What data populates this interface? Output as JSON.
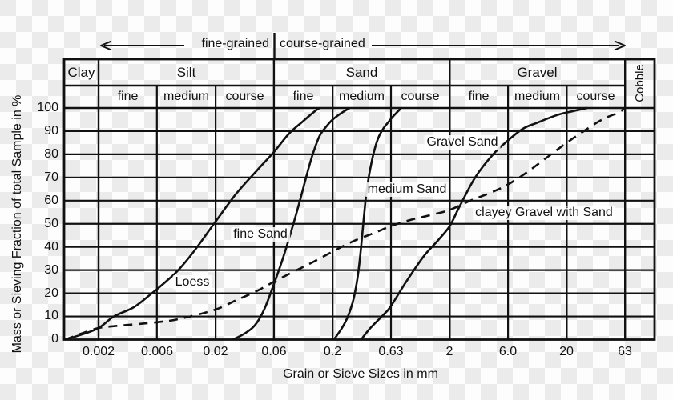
{
  "annotations": {
    "fine_grained": "fine-grained",
    "course_grained": "course-grained"
  },
  "header": {
    "row1": [
      "Clay",
      "Silt",
      "Sand",
      "Gravel"
    ],
    "cobble": "Cobble",
    "row2": [
      "fine",
      "medium",
      "course",
      "fine",
      "medium",
      "course",
      "fine",
      "medium",
      "course"
    ]
  },
  "axes": {
    "x": {
      "title": "Grain or Sieve Sizes in mm",
      "ticks": [
        {
          "label": "0.002",
          "mm": 0.002
        },
        {
          "label": "0.006",
          "mm": 0.0063
        },
        {
          "label": "0.02",
          "mm": 0.02
        },
        {
          "label": "0.06",
          "mm": 0.063
        },
        {
          "label": "0.2",
          "mm": 0.2
        },
        {
          "label": "0.63",
          "mm": 0.63
        },
        {
          "label": "2",
          "mm": 2
        },
        {
          "label": "6.0",
          "mm": 6.3
        },
        {
          "label": "20",
          "mm": 20
        },
        {
          "label": "63",
          "mm": 63
        }
      ]
    },
    "y": {
      "title": "Mass or Sieving Fraction of total Sample in %",
      "ticks": [
        "100",
        "90",
        "80",
        "70",
        "60",
        "50",
        "40",
        "30",
        "20",
        "10",
        "0"
      ]
    }
  },
  "chart_data": {
    "type": "line",
    "title": "",
    "xlabel": "Grain or Sieve Sizes in mm",
    "ylabel": "Mass or Sieving Fraction of total Sample in %",
    "xscale": "log",
    "xlim_mm": [
      0.001,
      112
    ],
    "ylim_pct": [
      0,
      100
    ],
    "grid": "on",
    "line_color": "#111111",
    "series": [
      {
        "name": "Loess",
        "style": "solid",
        "points": [
          [
            0.00102,
            0
          ],
          [
            0.0014,
            2
          ],
          [
            0.002,
            5
          ],
          [
            0.0027,
            10
          ],
          [
            0.004,
            14
          ],
          [
            0.0057,
            20
          ],
          [
            0.0075,
            25
          ],
          [
            0.0096,
            30
          ],
          [
            0.013,
            38
          ],
          [
            0.02,
            51
          ],
          [
            0.03,
            63
          ],
          [
            0.045,
            73
          ],
          [
            0.063,
            81
          ],
          [
            0.085,
            89
          ],
          [
            0.11,
            94
          ],
          [
            0.14,
            98.5
          ],
          [
            0.155,
            100
          ]
        ]
      },
      {
        "name": "fine Sand",
        "style": "solid",
        "points": [
          [
            0.028,
            0
          ],
          [
            0.035,
            2.5
          ],
          [
            0.043,
            6
          ],
          [
            0.052,
            13
          ],
          [
            0.063,
            24
          ],
          [
            0.075,
            35
          ],
          [
            0.09,
            48
          ],
          [
            0.105,
            60
          ],
          [
            0.12,
            71
          ],
          [
            0.135,
            80
          ],
          [
            0.155,
            88
          ],
          [
            0.18,
            92.5
          ],
          [
            0.2,
            95
          ],
          [
            0.24,
            98
          ],
          [
            0.28,
            100
          ]
        ]
      },
      {
        "name": "medium Sand",
        "style": "solid",
        "points": [
          [
            0.205,
            0
          ],
          [
            0.24,
            5
          ],
          [
            0.27,
            10
          ],
          [
            0.3,
            17
          ],
          [
            0.32,
            24
          ],
          [
            0.335,
            31
          ],
          [
            0.35,
            40
          ],
          [
            0.365,
            50
          ],
          [
            0.38,
            59
          ],
          [
            0.395,
            66
          ],
          [
            0.42,
            74
          ],
          [
            0.45,
            81
          ],
          [
            0.49,
            87
          ],
          [
            0.54,
            91
          ],
          [
            0.6,
            94
          ],
          [
            0.66,
            96.5
          ],
          [
            0.77,
            100
          ]
        ]
      },
      {
        "name": "Gravel Sand",
        "style": "solid",
        "points": [
          [
            0.35,
            0
          ],
          [
            0.42,
            5
          ],
          [
            0.55,
            11
          ],
          [
            0.63,
            14.5
          ],
          [
            0.85,
            25
          ],
          [
            1.2,
            36
          ],
          [
            1.6,
            43
          ],
          [
            2.0,
            49
          ],
          [
            2.4,
            57
          ],
          [
            3.3,
            70
          ],
          [
            4.7,
            80
          ],
          [
            6.3,
            86
          ],
          [
            8.4,
            91
          ],
          [
            11,
            93.5
          ],
          [
            16.6,
            97
          ],
          [
            22,
            98.5
          ],
          [
            30,
            100
          ]
        ]
      },
      {
        "name": "clayey Gravel with Sand",
        "style": "dashed",
        "points": [
          [
            0.00102,
            0
          ],
          [
            0.0015,
            3
          ],
          [
            0.002,
            5
          ],
          [
            0.003,
            6
          ],
          [
            0.0063,
            7.5
          ],
          [
            0.01,
            9
          ],
          [
            0.02,
            13
          ],
          [
            0.03,
            17
          ],
          [
            0.045,
            21
          ],
          [
            0.063,
            25
          ],
          [
            0.09,
            29
          ],
          [
            0.13,
            33
          ],
          [
            0.2,
            38
          ],
          [
            0.3,
            42.5
          ],
          [
            0.45,
            46
          ],
          [
            0.63,
            49
          ],
          [
            0.9,
            51.5
          ],
          [
            1.3,
            53.5
          ],
          [
            2,
            56
          ],
          [
            3,
            60
          ],
          [
            4.5,
            63.5
          ],
          [
            6.3,
            67
          ],
          [
            9,
            72
          ],
          [
            13,
            78
          ],
          [
            20,
            85
          ],
          [
            28,
            90
          ],
          [
            40,
            95
          ],
          [
            55,
            98
          ],
          [
            63,
            100
          ]
        ]
      }
    ]
  }
}
